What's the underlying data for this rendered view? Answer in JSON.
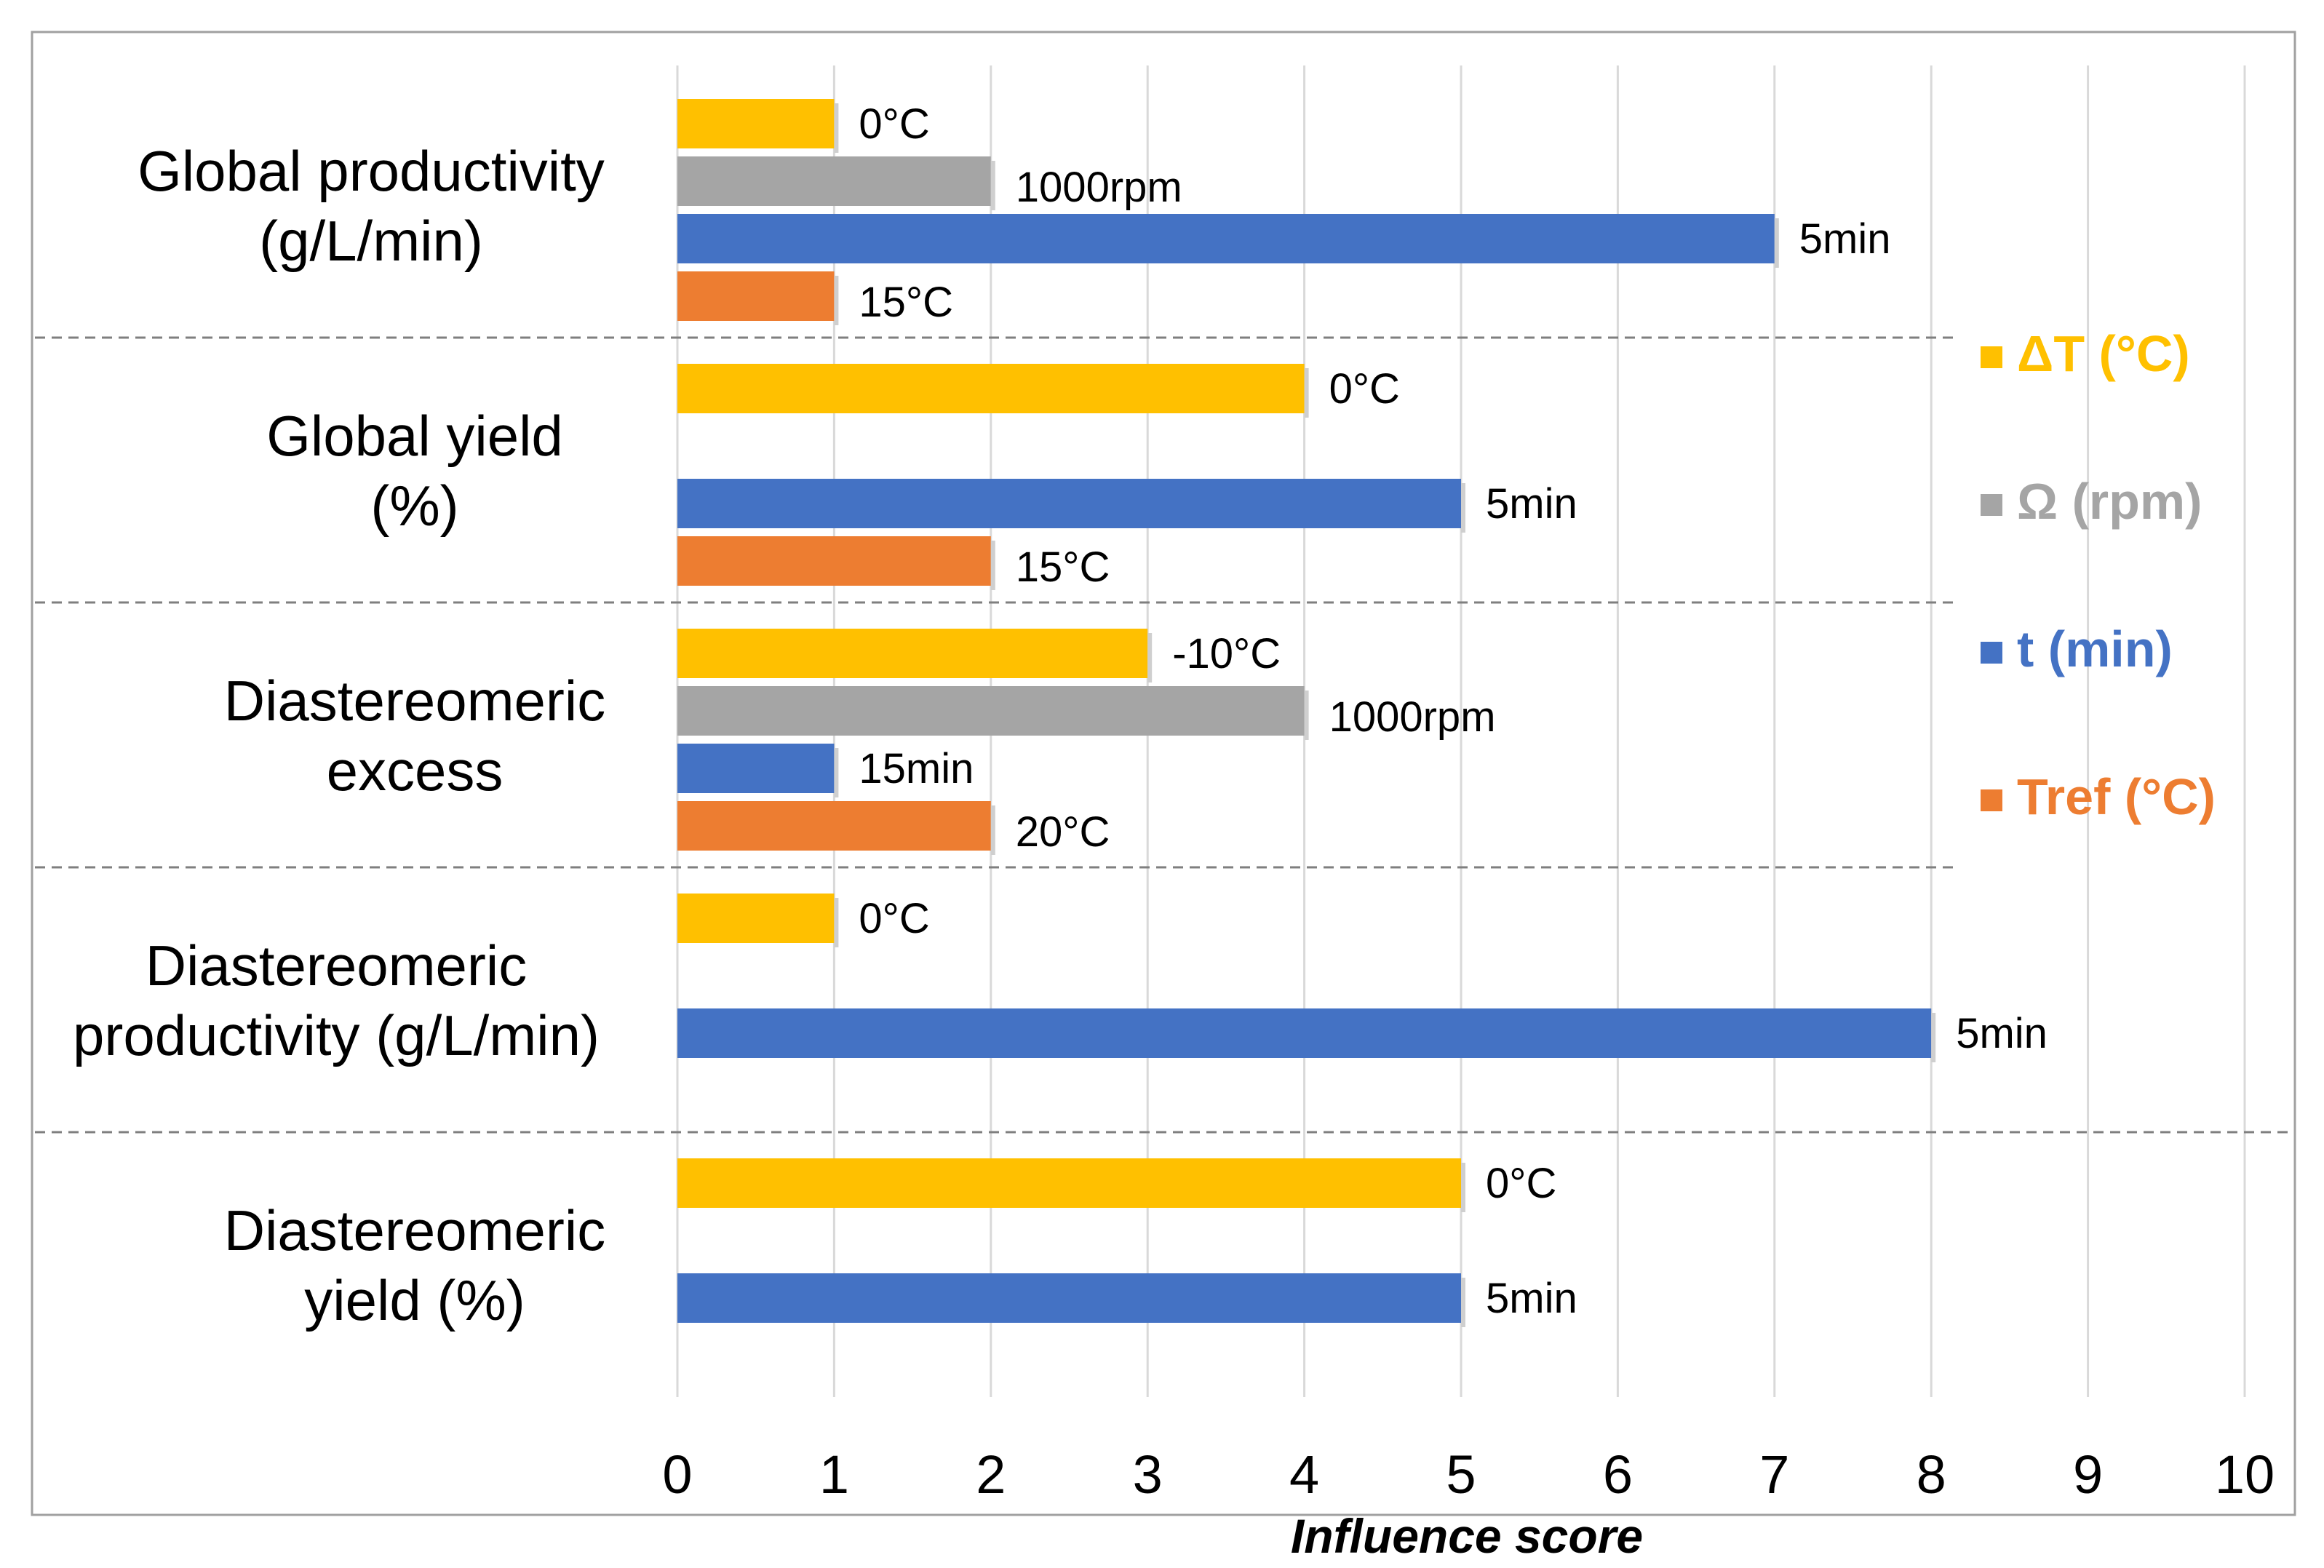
{
  "chart_data": {
    "type": "bar",
    "orientation": "horizontal",
    "title": "",
    "xlabel": "Influence score",
    "ylabel": "",
    "xlim": [
      0,
      10
    ],
    "x_ticks": [
      "0",
      "1",
      "2",
      "3",
      "4",
      "5",
      "6",
      "7",
      "8",
      "9",
      "10"
    ],
    "grid": true,
    "legend_position": "right",
    "categories": [
      {
        "line1": "Global productivity",
        "line2": "(g/L/min)"
      },
      {
        "line1": "Global yield",
        "line2": "(%)"
      },
      {
        "line1": "Diastereomeric",
        "line2": "excess"
      },
      {
        "line1": "Diastereomeric",
        "line2": "productivity (g/L/min)"
      },
      {
        "line1": "Diastereomeric",
        "line2": "yield (%)"
      }
    ],
    "series": [
      {
        "name": "ΔT (°C)",
        "color": "#FFC000",
        "values": [
          1,
          4,
          3,
          1,
          5
        ],
        "labels": [
          "0°C",
          "0°C",
          "-10°C",
          "0°C",
          "0°C"
        ]
      },
      {
        "name": "Ω (rpm)",
        "color": "#A5A5A5",
        "values": [
          2,
          0,
          4,
          0,
          0
        ],
        "labels": [
          "1000rpm",
          "",
          "1000rpm",
          "",
          ""
        ]
      },
      {
        "name": "t (min)",
        "color": "#4472C4",
        "values": [
          7,
          5,
          1,
          8,
          5
        ],
        "labels": [
          "5min",
          "5min",
          "15min",
          "5min",
          "5min"
        ]
      },
      {
        "name": "Tref (°C)",
        "color": "#ED7D31",
        "values": [
          1,
          2,
          2,
          0,
          0
        ],
        "labels": [
          "15°C",
          "15°C",
          "20°C",
          "",
          ""
        ]
      }
    ]
  }
}
